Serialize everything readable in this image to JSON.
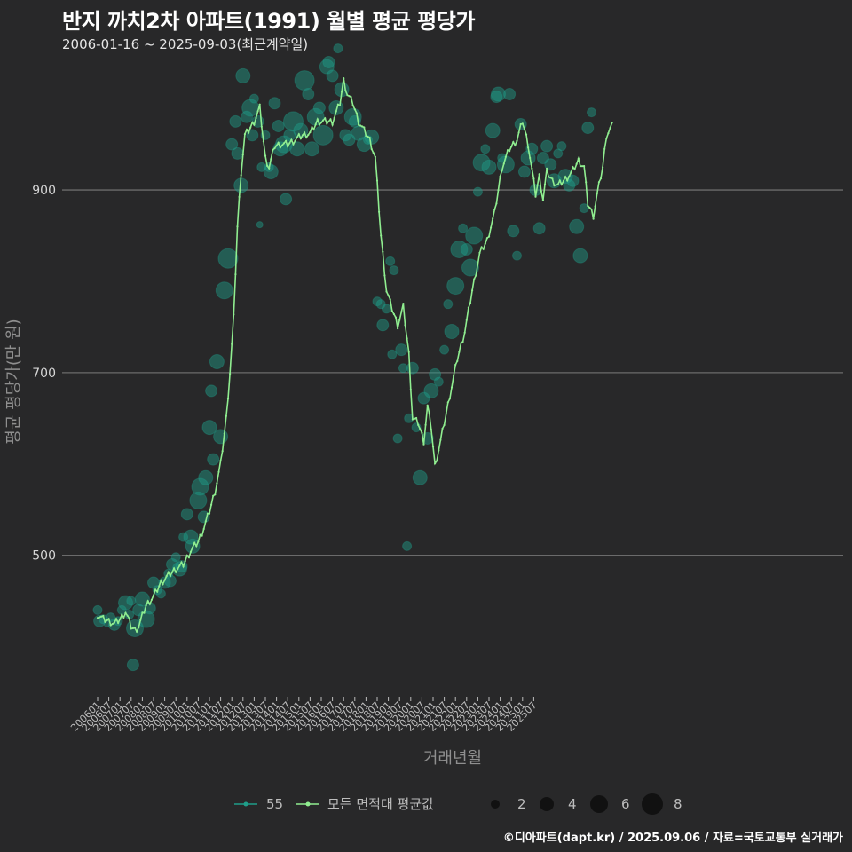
{
  "chart_data": {
    "type": "scatter",
    "title": "반지 까치2차 아파트(1991) 월별 평균 평당가",
    "subtitle": "2006-01-16 ~ 2025-09-03(최근계약일)",
    "xlabel": "거래년월",
    "ylabel": "평균 평당가(만 원)",
    "caption": "©디아파트(dapt.kr) / 2025.09.06 / 자료=국토교통부 실거래가",
    "ylim": [
      350,
      1040
    ],
    "yticks": [
      500,
      700,
      900
    ],
    "xticks": [
      "200601",
      "200607",
      "200701",
      "200707",
      "200801",
      "200807",
      "200901",
      "200907",
      "201001",
      "201007",
      "201101",
      "201107",
      "201201",
      "201207",
      "201301",
      "201307",
      "201401",
      "201407",
      "201501",
      "201507",
      "201601",
      "201607",
      "201701",
      "201707",
      "201801",
      "201807",
      "201901",
      "201907",
      "202001",
      "202007",
      "202101",
      "202107",
      "202201",
      "202207",
      "202301",
      "202307",
      "202401",
      "202407",
      "202501",
      "202507"
    ],
    "line_series": {
      "name": "모든 면적대 평균값",
      "color": "#90ee90",
      "anchors": [
        [
          0,
          435
        ],
        [
          3,
          430
        ],
        [
          6,
          428
        ],
        [
          9,
          425
        ],
        [
          12,
          430
        ],
        [
          15,
          438
        ],
        [
          18,
          422
        ],
        [
          20,
          418
        ],
        [
          22,
          422
        ],
        [
          26,
          445
        ],
        [
          30,
          455
        ],
        [
          34,
          470
        ],
        [
          38,
          478
        ],
        [
          42,
          485
        ],
        [
          46,
          490
        ],
        [
          50,
          505
        ],
        [
          54,
          515
        ],
        [
          57,
          530
        ],
        [
          60,
          548
        ],
        [
          63,
          570
        ],
        [
          66,
          600
        ],
        [
          69,
          650
        ],
        [
          71,
          700
        ],
        [
          73,
          760
        ],
        [
          75,
          860
        ],
        [
          77,
          920
        ],
        [
          79,
          960
        ],
        [
          81,
          965
        ],
        [
          84,
          975
        ],
        [
          87,
          990
        ],
        [
          90,
          935
        ],
        [
          92,
          925
        ],
        [
          95,
          948
        ],
        [
          98,
          950
        ],
        [
          102,
          950
        ],
        [
          106,
          955
        ],
        [
          110,
          960
        ],
        [
          114,
          962
        ],
        [
          118,
          975
        ],
        [
          122,
          975
        ],
        [
          126,
          975
        ],
        [
          130,
          995
        ],
        [
          132,
          1020
        ],
        [
          134,
          1005
        ],
        [
          137,
          995
        ],
        [
          140,
          975
        ],
        [
          143,
          965
        ],
        [
          146,
          955
        ],
        [
          149,
          935
        ],
        [
          152,
          850
        ],
        [
          155,
          790
        ],
        [
          158,
          770
        ],
        [
          161,
          752
        ],
        [
          164,
          772
        ],
        [
          167,
          720
        ],
        [
          169,
          650
        ],
        [
          172,
          645
        ],
        [
          175,
          625
        ],
        [
          177,
          663
        ],
        [
          179,
          640
        ],
        [
          181,
          598
        ],
        [
          184,
          625
        ],
        [
          187,
          655
        ],
        [
          190,
          685
        ],
        [
          193,
          715
        ],
        [
          197,
          745
        ],
        [
          201,
          790
        ],
        [
          205,
          830
        ],
        [
          209,
          845
        ],
        [
          213,
          875
        ],
        [
          217,
          925
        ],
        [
          221,
          945
        ],
        [
          225,
          955
        ],
        [
          228,
          975
        ],
        [
          231,
          950
        ],
        [
          235,
          895
        ],
        [
          237,
          915
        ],
        [
          239,
          890
        ],
        [
          241,
          920
        ],
        [
          244,
          910
        ],
        [
          247,
          905
        ],
        [
          250,
          910
        ],
        [
          254,
          918
        ],
        [
          258,
          932
        ],
        [
          261,
          925
        ],
        [
          263,
          885
        ],
        [
          266,
          872
        ],
        [
          268,
          895
        ],
        [
          271,
          925
        ],
        [
          273,
          960
        ],
        [
          276,
          970
        ]
      ],
      "markers_every": 1
    },
    "scatter_series": {
      "name": "55",
      "color": "#1f9e89",
      "points": [
        [
          0,
          440,
          2
        ],
        [
          1,
          428,
          3
        ],
        [
          3,
          430,
          2
        ],
        [
          5,
          425,
          1
        ],
        [
          7,
          432,
          2
        ],
        [
          9,
          424,
          3
        ],
        [
          11,
          428,
          2
        ],
        [
          13,
          440,
          2
        ],
        [
          15,
          448,
          4
        ],
        [
          17,
          435,
          2
        ],
        [
          18,
          450,
          2
        ],
        [
          19,
          380,
          3
        ],
        [
          20,
          420,
          5
        ],
        [
          22,
          440,
          3
        ],
        [
          24,
          452,
          4
        ],
        [
          26,
          430,
          5
        ],
        [
          28,
          442,
          3
        ],
        [
          30,
          470,
          3
        ],
        [
          32,
          462,
          2
        ],
        [
          34,
          458,
          2
        ],
        [
          36,
          470,
          3
        ],
        [
          38,
          480,
          2
        ],
        [
          39,
          472,
          3
        ],
        [
          40,
          490,
          3
        ],
        [
          42,
          498,
          2
        ],
        [
          44,
          485,
          4
        ],
        [
          45,
          488,
          3
        ],
        [
          46,
          520,
          2
        ],
        [
          48,
          545,
          3
        ],
        [
          50,
          520,
          4
        ],
        [
          51,
          510,
          4
        ],
        [
          54,
          560,
          5
        ],
        [
          55,
          575,
          5
        ],
        [
          57,
          542,
          3
        ],
        [
          58,
          585,
          4
        ],
        [
          60,
          640,
          4
        ],
        [
          61,
          680,
          3
        ],
        [
          62,
          605,
          3
        ],
        [
          64,
          712,
          4
        ],
        [
          66,
          630,
          4
        ],
        [
          68,
          790,
          5
        ],
        [
          70,
          825,
          6
        ],
        [
          72,
          950,
          3
        ],
        [
          74,
          975,
          3
        ],
        [
          75,
          940,
          3
        ],
        [
          77,
          905,
          4
        ],
        [
          78,
          1025,
          4
        ],
        [
          80,
          980,
          3
        ],
        [
          82,
          990,
          5
        ],
        [
          83,
          960,
          3
        ],
        [
          84,
          1000,
          2
        ],
        [
          86,
          975,
          3
        ],
        [
          87,
          862,
          1
        ],
        [
          88,
          925,
          2
        ],
        [
          90,
          960,
          2
        ],
        [
          92,
          925,
          2
        ],
        [
          93,
          920,
          4
        ],
        [
          95,
          995,
          3
        ],
        [
          97,
          970,
          3
        ],
        [
          98,
          945,
          4
        ],
        [
          100,
          950,
          5
        ],
        [
          101,
          890,
          3
        ],
        [
          103,
          960,
          3
        ],
        [
          105,
          975,
          6
        ],
        [
          107,
          945,
          4
        ],
        [
          109,
          965,
          4
        ],
        [
          111,
          1020,
          6
        ],
        [
          113,
          1005,
          3
        ],
        [
          115,
          945,
          4
        ],
        [
          117,
          980,
          5
        ],
        [
          119,
          990,
          3
        ],
        [
          121,
          960,
          6
        ],
        [
          123,
          1035,
          4
        ],
        [
          124,
          1040,
          3
        ],
        [
          126,
          1025,
          3
        ],
        [
          128,
          990,
          4
        ],
        [
          129,
          1055,
          2
        ],
        [
          131,
          1010,
          4
        ],
        [
          133,
          960,
          3
        ],
        [
          135,
          955,
          3
        ],
        [
          137,
          980,
          5
        ],
        [
          138,
          975,
          3
        ],
        [
          140,
          962,
          4
        ],
        [
          143,
          950,
          4
        ],
        [
          145,
          955,
          2
        ],
        [
          147,
          958,
          4
        ],
        [
          150,
          778,
          2
        ],
        [
          152,
          775,
          2
        ],
        [
          153,
          752,
          3
        ],
        [
          155,
          770,
          2
        ],
        [
          157,
          822,
          2
        ],
        [
          158,
          720,
          2
        ],
        [
          159,
          812,
          2
        ],
        [
          161,
          628,
          2
        ],
        [
          163,
          725,
          3
        ],
        [
          164,
          705,
          2
        ],
        [
          166,
          510,
          2
        ],
        [
          167,
          650,
          2
        ],
        [
          169,
          705,
          3
        ],
        [
          171,
          640,
          2
        ],
        [
          173,
          585,
          4
        ],
        [
          175,
          672,
          3
        ],
        [
          177,
          628,
          3
        ],
        [
          179,
          680,
          4
        ],
        [
          181,
          698,
          3
        ],
        [
          183,
          690,
          2
        ],
        [
          186,
          725,
          2
        ],
        [
          188,
          775,
          2
        ],
        [
          190,
          745,
          4
        ],
        [
          192,
          795,
          5
        ],
        [
          194,
          835,
          5
        ],
        [
          196,
          858,
          2
        ],
        [
          198,
          835,
          3
        ],
        [
          200,
          815,
          5
        ],
        [
          202,
          850,
          5
        ],
        [
          204,
          898,
          2
        ],
        [
          206,
          930,
          5
        ],
        [
          208,
          945,
          2
        ],
        [
          210,
          925,
          4
        ],
        [
          212,
          965,
          4
        ],
        [
          214,
          1002,
          3
        ],
        [
          215,
          1005,
          4
        ],
        [
          217,
          935,
          2
        ],
        [
          219,
          928,
          5
        ],
        [
          221,
          1005,
          3
        ],
        [
          223,
          855,
          3
        ],
        [
          225,
          828,
          2
        ],
        [
          227,
          972,
          3
        ],
        [
          229,
          920,
          3
        ],
        [
          231,
          935,
          4
        ],
        [
          233,
          945,
          3
        ],
        [
          235,
          900,
          3
        ],
        [
          237,
          858,
          3
        ],
        [
          239,
          935,
          3
        ],
        [
          241,
          948,
          3
        ],
        [
          243,
          928,
          3
        ],
        [
          245,
          910,
          4
        ],
        [
          247,
          940,
          2
        ],
        [
          249,
          948,
          2
        ],
        [
          251,
          915,
          4
        ],
        [
          253,
          905,
          3
        ],
        [
          255,
          910,
          3
        ],
        [
          257,
          860,
          4
        ],
        [
          259,
          828,
          4
        ],
        [
          261,
          880,
          2
        ],
        [
          263,
          968,
          3
        ],
        [
          265,
          985,
          2
        ]
      ]
    },
    "legend": {
      "line_label": "55",
      "avg_label": "모든 면적대 평균값",
      "size_labels": [
        "2",
        "4",
        "6",
        "8"
      ]
    }
  }
}
